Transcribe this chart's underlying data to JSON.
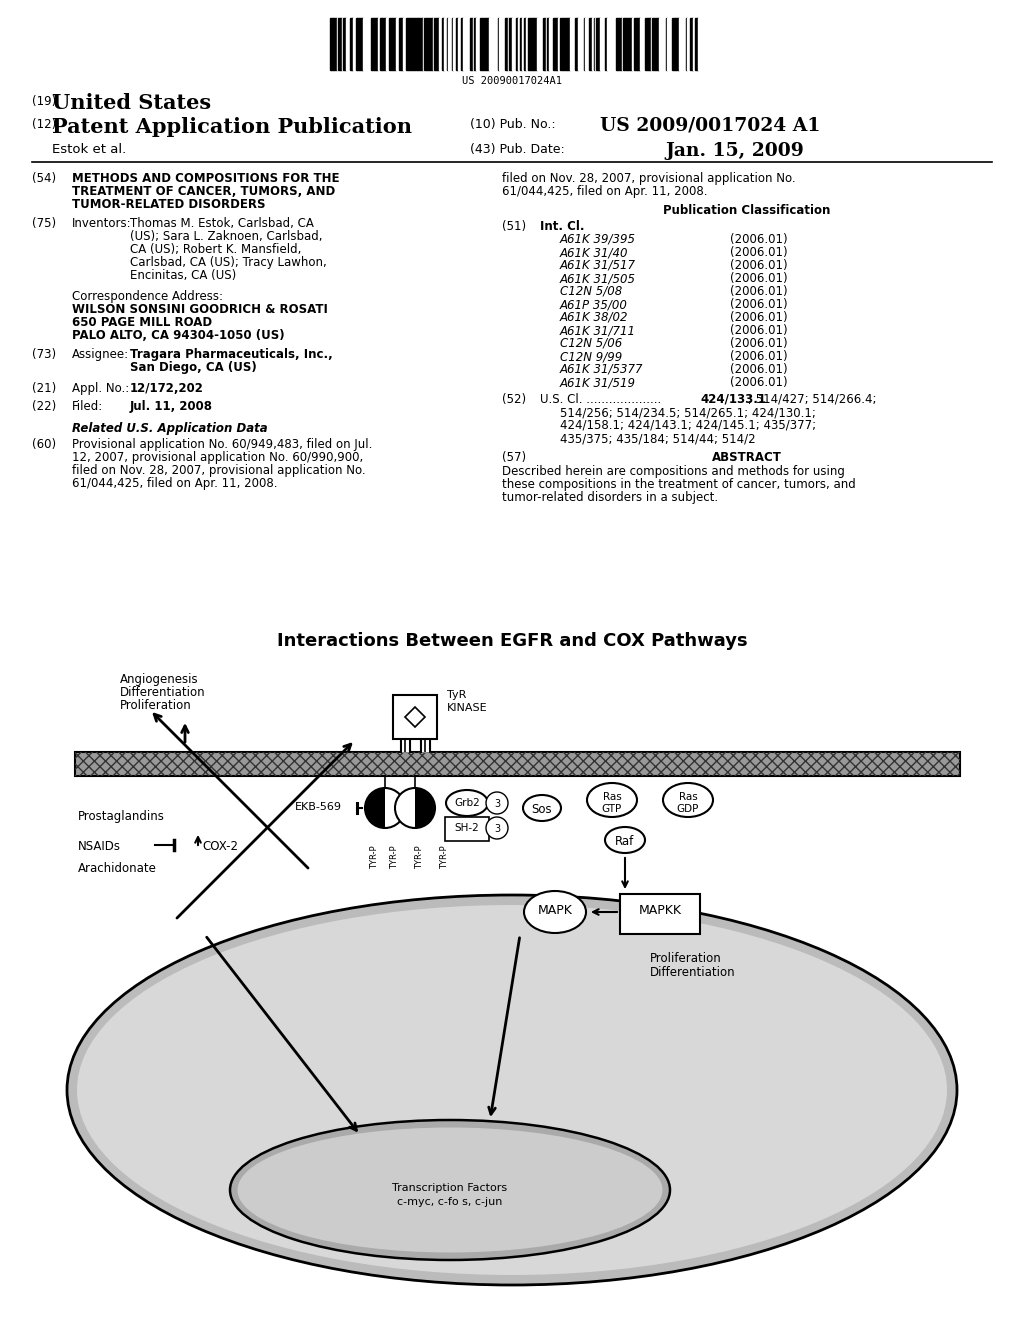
{
  "bg_color": "#ffffff",
  "barcode_text": "US 20090017024A1",
  "diagram_title": "Interactions Between EGFR and COX Pathways",
  "header": {
    "us_label": "(19)",
    "us_title": "United States",
    "pub_label": "(12)",
    "pub_title": "Patent Application Publication",
    "authors": "Estok et al.",
    "pub_no_label": "(10) Pub. No.:",
    "pub_no": "US 2009/0017024 A1",
    "pub_date_label": "(43) Pub. Date:",
    "pub_date": "Jan. 15, 2009"
  },
  "left_col": {
    "title_num": "(54)",
    "title_lines": [
      "METHODS AND COMPOSITIONS FOR THE",
      "TREATMENT OF CANCER, TUMORS, AND",
      "TUMOR-RELATED DISORDERS"
    ],
    "inv_num": "(75)",
    "inv_label": "Inventors:",
    "inv_lines": [
      "Thomas M. Estok, Carlsbad, CA",
      "(US); Sara L. Zaknoen, Carlsbad,",
      "CA (US); Robert K. Mansfield,",
      "Carlsbad, CA (US); Tracy Lawhon,",
      "Encinitas, CA (US)"
    ],
    "corr_label": "Correspondence Address:",
    "corr_bold": [
      "WILSON SONSINI GOODRICH & ROSATI",
      "650 PAGE MILL ROAD",
      "PALO ALTO, CA 94304-1050 (US)"
    ],
    "assign_num": "(73)",
    "assign_label": "Assignee:",
    "assign_lines": [
      "Tragara Pharmaceuticals, Inc.,",
      "San Diego, CA (US)"
    ],
    "appl_num": "(21)",
    "appl_label": "Appl. No.:",
    "appl_val": "12/172,202",
    "filed_num": "(22)",
    "filed_label": "Filed:",
    "filed_val": "Jul. 11, 2008",
    "related_title": "Related U.S. Application Data",
    "rel60_label": "(60)",
    "rel60_lines": [
      "Provisional application No. 60/949,483, filed on Jul.",
      "12, 2007, provisional application No. 60/990,900,",
      "filed on Nov. 28, 2007, provisional application No.",
      "61/044,425, filed on Apr. 11, 2008."
    ]
  },
  "right_col": {
    "filed_lines": [
      "filed on Nov. 28, 2007, provisional application No.",
      "61/044,425, filed on Apr. 11, 2008."
    ],
    "pub_class_title": "Publication Classification",
    "int_num": "(51)",
    "int_label": "Int. Cl.",
    "int_entries": [
      [
        "A61K 39/395",
        "(2006.01)"
      ],
      [
        "A61K 31/40",
        "(2006.01)"
      ],
      [
        "A61K 31/517",
        "(2006.01)"
      ],
      [
        "A61K 31/505",
        "(2006.01)"
      ],
      [
        "C12N 5/08",
        "(2006.01)"
      ],
      [
        "A61P 35/00",
        "(2006.01)"
      ],
      [
        "A61K 38/02",
        "(2006.01)"
      ],
      [
        "A61K 31/711",
        "(2006.01)"
      ],
      [
        "C12N 5/06",
        "(2006.01)"
      ],
      [
        "C12N 9/99",
        "(2006.01)"
      ],
      [
        "A61K 31/5377",
        "(2006.01)"
      ],
      [
        "A61K 31/519",
        "(2006.01)"
      ]
    ],
    "us_num": "(52)",
    "us_label": "U.S. Cl.",
    "us_cl_bold": "424/133.1",
    "us_cl_lines": [
      "; 514/427; 514/266.4;",
      "514/256; 514/234.5; 514/265.1; 424/130.1;",
      "424/158.1; 424/143.1; 424/145.1; 435/377;",
      "435/375; 435/184; 514/44; 514/2"
    ],
    "abst_num": "(57)",
    "abst_label": "ABSTRACT",
    "abst_lines": [
      "Described herein are compositions and methods for using",
      "these compositions in the treatment of cancer, tumors, and",
      "tumor-related disorders in a subject."
    ]
  }
}
